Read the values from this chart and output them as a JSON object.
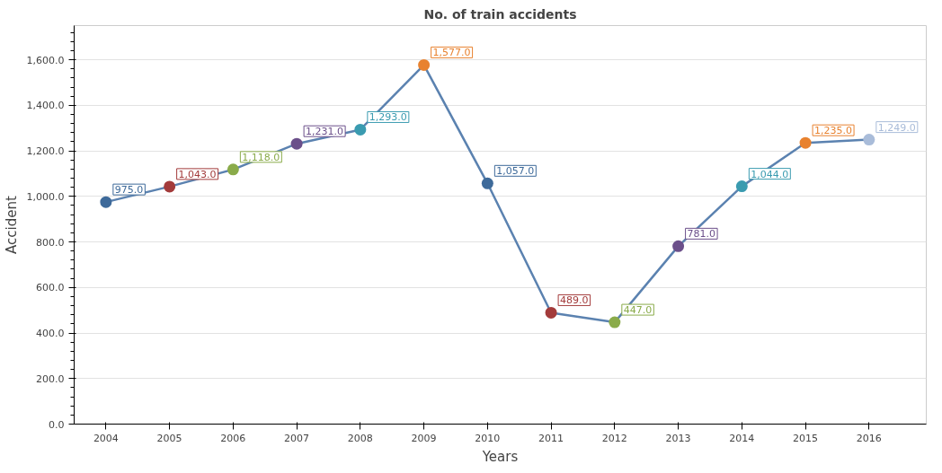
{
  "chart_data": {
    "type": "line",
    "title": "No. of train accidents",
    "xlabel": "Years",
    "ylabel": "Accident",
    "categories": [
      "2004",
      "2005",
      "2006",
      "2007",
      "2008",
      "2009",
      "2010",
      "2011",
      "2012",
      "2013",
      "2014",
      "2015",
      "2016"
    ],
    "series": [
      {
        "color": "#5b82b0",
        "values": [
          975,
          1043,
          1118,
          1231,
          1293,
          1577,
          1057,
          489,
          447,
          781,
          1044,
          1235,
          1249
        ],
        "colors": [
          "#3e6a9a",
          "#a33b3b",
          "#8aab4a",
          "#6b4f8a",
          "#3a9bb0",
          "#e8822f",
          "#3e6a9a",
          "#a33b3b",
          "#8aab4a",
          "#6b4f8a",
          "#3a9bb0",
          "#e8822f",
          "#a9bcd9"
        ],
        "value_labels": [
          "975.0",
          "1,043.0",
          "1,118.0",
          "1,231.0",
          "1,293.0",
          "1,577.0",
          "1,057.0",
          "489.0",
          "447.0",
          "781.0",
          "1,044.0",
          "1,235.0",
          "1,249.0"
        ]
      }
    ],
    "ylim": [
      0,
      1750
    ],
    "yticks": [
      {
        "value": 0,
        "label": "0.0"
      },
      {
        "value": 200,
        "label": "200.0"
      },
      {
        "value": 400,
        "label": "400.0"
      },
      {
        "value": 600,
        "label": "600.0"
      },
      {
        "value": 800,
        "label": "800.0"
      },
      {
        "value": 1000,
        "label": "1,000.0"
      },
      {
        "value": 1200,
        "label": "1,200.0"
      },
      {
        "value": 1400,
        "label": "1,400.0"
      },
      {
        "value": 1600,
        "label": "1,600.0"
      }
    ],
    "grid": "y",
    "marker": "circle",
    "line_style": "solid"
  }
}
